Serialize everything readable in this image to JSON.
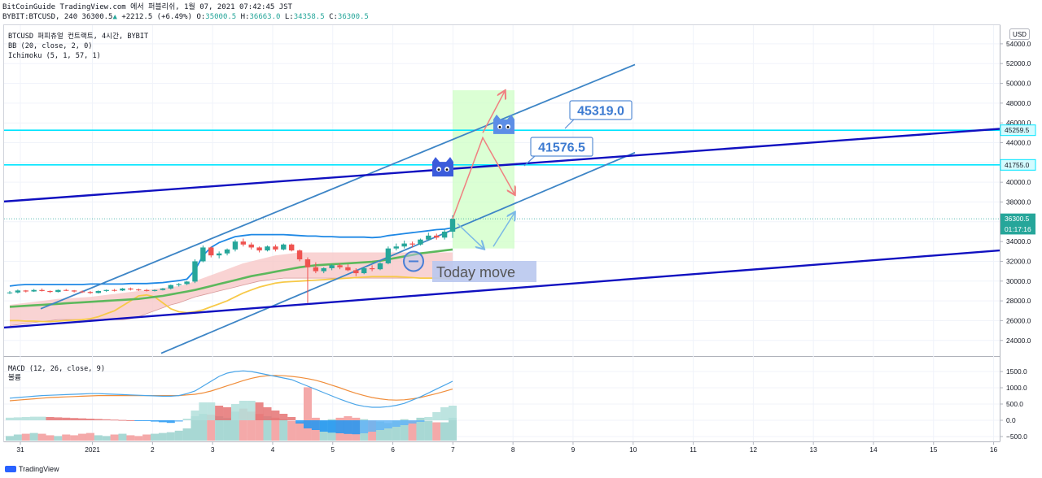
{
  "header": {
    "line1": "BitCoinGuide TradingView.com 에서 퍼블리쉬, 1월 07, 2021 07:42:45 JST",
    "symbol": "BYBIT:BTCUSD, 240",
    "last": "36300.5",
    "change": "+2212.5 (+6.49%)",
    "o_label": "O:",
    "o": "35000.5",
    "h_label": "H:",
    "h": "36663.0",
    "l_label": "L:",
    "l": "34358.5",
    "c_label": "C:",
    "c": "36300.5"
  },
  "legend": {
    "title": "BTCUSD 퍼피츄얼 컨트랙트, 4시간, BYBIT",
    "bb": "BB (20, close, 2, 0)",
    "ichimoku": "Ichimoku (5, 1, 57, 1)"
  },
  "macd_legend": {
    "title": "MACD (12, 26, close, 9)",
    "sub": "볼륨"
  },
  "currency": "USD",
  "colors": {
    "up": "#26a69a",
    "down": "#ef5350",
    "channel": "#3d85c6",
    "trend": "#1010c0",
    "hline": "#00e5ff",
    "bb": "#1e88e5",
    "kijun": "#5cb85c",
    "senkou": "#f7c948",
    "cloud": "#f8c8c8",
    "zone": "#cfffc6",
    "macd": "#4aa5e8",
    "signal": "#f08d3a",
    "hist_up": "#26a69a",
    "hist_down": "#ef5350"
  },
  "watermark": "TradingView",
  "chart_data": {
    "type": "candlestick",
    "ylim": [
      22500,
      55800
    ],
    "yticks": [
      24000,
      26000,
      28000,
      30000,
      32000,
      34000,
      36000,
      38000,
      40000,
      42000,
      44000,
      46000,
      48000,
      50000,
      52000,
      54000
    ],
    "xlim": [
      30.8,
      16.3
    ],
    "xticks": [
      {
        "label": "31",
        "x": 30.8
      },
      {
        "label": "2021",
        "x": 32.0
      },
      {
        "label": "2",
        "x": 33.0
      },
      {
        "label": "3",
        "x": 34.0
      },
      {
        "label": "4",
        "x": 35.0
      },
      {
        "label": "5",
        "x": 36.0
      },
      {
        "label": "6",
        "x": 37.0
      },
      {
        "label": "7",
        "x": 38.0
      },
      {
        "label": "8",
        "x": 39.0
      },
      {
        "label": "9",
        "x": 40.0
      },
      {
        "label": "10",
        "x": 41.0
      },
      {
        "label": "11",
        "x": 42.0
      },
      {
        "label": "12",
        "x": 43.0
      },
      {
        "label": "13",
        "x": 44.0
      },
      {
        "label": "14",
        "x": 45.0
      },
      {
        "label": "15",
        "x": 46.0
      },
      {
        "label": "16",
        "x": 47.0
      }
    ],
    "price_tags": [
      {
        "value": 45259.5,
        "label": "45259.5",
        "kind": "line"
      },
      {
        "value": 41755.0,
        "label": "41755.0",
        "kind": "line"
      },
      {
        "value": 36300.5,
        "label": "36300.5",
        "kind": "last"
      },
      {
        "value": 35250,
        "label": "01:17:16",
        "kind": "timer"
      }
    ],
    "candles": [
      [
        28800,
        29000,
        28700,
        28850
      ],
      [
        28850,
        29150,
        28750,
        29050
      ],
      [
        29050,
        29100,
        28850,
        28950
      ],
      [
        28950,
        29200,
        28900,
        29100
      ],
      [
        29100,
        29250,
        28950,
        29000
      ],
      [
        29000,
        29050,
        28800,
        28900
      ],
      [
        28900,
        29150,
        28850,
        29100
      ],
      [
        29100,
        29200,
        29000,
        29050
      ],
      [
        29050,
        29100,
        28850,
        28950
      ],
      [
        28950,
        29050,
        28800,
        28900
      ],
      [
        28900,
        29000,
        28700,
        28800
      ],
      [
        28800,
        29050,
        28750,
        29000
      ],
      [
        29000,
        29150,
        28900,
        29100
      ],
      [
        29100,
        29200,
        28950,
        29050
      ],
      [
        29050,
        29300,
        29000,
        29250
      ],
      [
        29250,
        29350,
        29050,
        29150
      ],
      [
        29150,
        29250,
        29000,
        29100
      ],
      [
        29100,
        29200,
        28950,
        29000
      ],
      [
        29000,
        29150,
        28950,
        29100
      ],
      [
        29100,
        29300,
        29050,
        29250
      ],
      [
        29250,
        29650,
        29150,
        29600
      ],
      [
        29600,
        29800,
        29450,
        29700
      ],
      [
        29700,
        30000,
        29600,
        29950
      ],
      [
        29950,
        32200,
        29800,
        32000
      ],
      [
        32000,
        33600,
        31900,
        33400
      ],
      [
        33400,
        33500,
        32400,
        32600
      ],
      [
        32600,
        33000,
        32300,
        32800
      ],
      [
        32800,
        33300,
        32600,
        33200
      ],
      [
        33200,
        34200,
        33000,
        34000
      ],
      [
        34000,
        34300,
        33500,
        33700
      ],
      [
        33700,
        33900,
        33200,
        33400
      ],
      [
        33400,
        33500,
        32900,
        33100
      ],
      [
        33100,
        33600,
        33000,
        33500
      ],
      [
        33500,
        33700,
        33000,
        33200
      ],
      [
        33200,
        33800,
        33100,
        33700
      ],
      [
        33700,
        33800,
        33000,
        33100
      ],
      [
        33100,
        33200,
        32000,
        32200
      ],
      [
        32200,
        32400,
        27800,
        31400
      ],
      [
        31400,
        31900,
        30800,
        31000
      ],
      [
        31000,
        31400,
        30800,
        31300
      ],
      [
        31300,
        31700,
        31100,
        31600
      ],
      [
        31600,
        31800,
        31200,
        31400
      ],
      [
        31400,
        31700,
        31000,
        31100
      ],
      [
        31100,
        31300,
        30500,
        30800
      ],
      [
        30800,
        31400,
        30700,
        31300
      ],
      [
        31300,
        31600,
        31000,
        31200
      ],
      [
        31200,
        31900,
        31100,
        31800
      ],
      [
        31800,
        33500,
        31700,
        33300
      ],
      [
        33300,
        33800,
        33100,
        33500
      ],
      [
        33500,
        34100,
        33300,
        33800
      ],
      [
        33800,
        34000,
        33400,
        33700
      ],
      [
        33700,
        34300,
        33600,
        34200
      ],
      [
        34200,
        34900,
        34100,
        34600
      ],
      [
        34600,
        34800,
        34200,
        34400
      ],
      [
        34400,
        35200,
        34200,
        35000
      ],
      [
        35000,
        36663,
        34358,
        36300.5
      ]
    ],
    "bb_basis": [
      28500,
      28550,
      28600,
      28620,
      28650,
      28680,
      28700,
      28720,
      28750,
      28780,
      28800,
      28850,
      28900,
      28950,
      29000,
      29050,
      29100,
      29150,
      29200,
      29250,
      29350,
      29450,
      29550,
      29750,
      30000,
      30250,
      30450,
      30650,
      30850,
      31050,
      31250,
      31400,
      31550,
      31650,
      31750,
      31850,
      31900,
      31900,
      31950,
      31950,
      32000,
      32050,
      32100,
      32150,
      32200,
      32250,
      32300,
      32400,
      32500,
      32600,
      32700,
      32800,
      32900,
      33000,
      33100,
      33200
    ],
    "bb_upper": [
      29500,
      29600,
      29650,
      29650,
      29650,
      29650,
      29650,
      29650,
      29650,
      29650,
      29700,
      29700,
      29700,
      29700,
      29700,
      29750,
      29750,
      29750,
      29800,
      29850,
      29950,
      30050,
      30200,
      31100,
      32600,
      33400,
      33900,
      34200,
      34500,
      34600,
      34700,
      34700,
      34700,
      34700,
      34700,
      34650,
      34600,
      34550,
      34550,
      34500,
      34500,
      34450,
      34450,
      34450,
      34450,
      34400,
      34450,
      34600,
      34700,
      34800,
      34900,
      35000,
      35100,
      35200,
      35250,
      35400
    ],
    "kijun": [
      27400,
      27450,
      27500,
      27550,
      27600,
      27650,
      27700,
      27750,
      27800,
      27850,
      27900,
      27950,
      28000,
      28050,
      28100,
      28150,
      28200,
      28300,
      28400,
      28500,
      28650,
      28800,
      28950,
      29100,
      29300,
      29500,
      29700,
      29900,
      30100,
      30300,
      30500,
      30650,
      30800,
      30950,
      31100,
      31250,
      31400,
      31500,
      31600,
      31650,
      31700,
      31750,
      31800,
      31850,
      31900,
      31950,
      32050,
      32200,
      32350,
      32500,
      32650,
      32800,
      32900,
      33000,
      33100,
      33200
    ],
    "senkou": [
      26000,
      26000,
      25950,
      25950,
      25900,
      25900,
      25950,
      26000,
      26050,
      26100,
      26200,
      26400,
      26700,
      27000,
      27500,
      28000,
      28500,
      28600,
      28400,
      27800,
      27200,
      26900,
      26800,
      26900,
      27100,
      27400,
      27700,
      28000,
      28400,
      28800,
      29100,
      29400,
      29600,
      29800,
      29900,
      29950,
      30000,
      30050,
      30100,
      30150,
      30200,
      30250,
      30300,
      30350,
      30400,
      30450,
      30450,
      30450,
      30450,
      30400,
      30350,
      30300,
      30300,
      30300,
      30250,
      30200
    ],
    "cloud_top": [
      27600,
      27700,
      27800,
      27900,
      28000,
      28100,
      28200,
      28250,
      28300,
      28350,
      28400,
      28500,
      28600,
      28700,
      28800,
      28900,
      29000,
      29100,
      29200,
      29300,
      29400,
      29500,
      29700,
      30000,
      30300,
      30600,
      30900,
      31200,
      31500,
      31800,
      32000,
      32200,
      32400,
      32600,
      32700,
      32800,
      32900,
      32900,
      32900,
      32900,
      32900,
      32900,
      32900,
      32900,
      32900,
      32900,
      32900,
      32900,
      32900,
      32900,
      32900,
      32900,
      32900,
      32900,
      32900,
      32900
    ],
    "cloud_bottom": [
      25500,
      25600,
      25700,
      25800,
      25900,
      26000,
      26100,
      26100,
      26100,
      26100,
      26100,
      26100,
      26100,
      26100,
      26100,
      26200,
      26400,
      26700,
      27000,
      27300,
      27600,
      27800,
      28100,
      28400,
      28600,
      28800,
      29000,
      29200,
      29400,
      29600,
      29800,
      30000,
      30100,
      30200,
      30300,
      30300,
      30300,
      30300,
      30300,
      30300,
      30300,
      30300,
      30300,
      30300,
      30300,
      30300,
      30300,
      30300,
      30300,
      30300,
      30300,
      30300,
      30300,
      30300,
      30300,
      30300
    ],
    "macd_ylim": [
      -650,
      1900
    ],
    "macd_yticks": [
      -500,
      0,
      500,
      1000,
      1500
    ],
    "macd": [
      680,
      700,
      720,
      740,
      760,
      770,
      780,
      790,
      800,
      810,
      820,
      820,
      810,
      800,
      790,
      780,
      770,
      760,
      750,
      740,
      740,
      760,
      820,
      900,
      1050,
      1200,
      1350,
      1450,
      1500,
      1520,
      1500,
      1450,
      1400,
      1350,
      1300,
      1250,
      1150,
      1050,
      950,
      850,
      750,
      650,
      560,
      480,
      430,
      400,
      400,
      420,
      460,
      520,
      620,
      720,
      840,
      960,
      1080,
      1200
    ],
    "signal": [
      600,
      620,
      640,
      660,
      680,
      700,
      710,
      720,
      730,
      740,
      750,
      760,
      760,
      760,
      760,
      760,
      760,
      760,
      760,
      760,
      760,
      760,
      780,
      800,
      840,
      900,
      980,
      1060,
      1140,
      1220,
      1290,
      1340,
      1370,
      1380,
      1370,
      1350,
      1320,
      1280,
      1230,
      1160,
      1080,
      1000,
      910,
      830,
      760,
      700,
      660,
      630,
      620,
      630,
      660,
      700,
      760,
      820,
      890,
      960
    ],
    "macd_hist": [
      80,
      90,
      100,
      110,
      110,
      100,
      90,
      80,
      70,
      60,
      50,
      40,
      30,
      20,
      10,
      0,
      -10,
      -20,
      -40,
      -60,
      -80,
      -40,
      50,
      300,
      550,
      550,
      450,
      400,
      500,
      600,
      600,
      550,
      400,
      300,
      200,
      100,
      -100,
      -250,
      -300,
      -350,
      -380,
      -400,
      -420,
      -430,
      -400,
      -350,
      -300,
      -250,
      -200,
      -150,
      -100,
      -50,
      100,
      250,
      400,
      450
    ],
    "volume": [
      60,
      80,
      90,
      100,
      90,
      70,
      60,
      80,
      70,
      90,
      100,
      70,
      60,
      80,
      90,
      70,
      60,
      80,
      90,
      100,
      110,
      130,
      160,
      320,
      350,
      340,
      320,
      300,
      380,
      420,
      380,
      350,
      320,
      300,
      280,
      260,
      240,
      700,
      300,
      260,
      280,
      300,
      320,
      300,
      280,
      260,
      250,
      230,
      260,
      280,
      260,
      300,
      260,
      240,
      240,
      300
    ]
  }
}
